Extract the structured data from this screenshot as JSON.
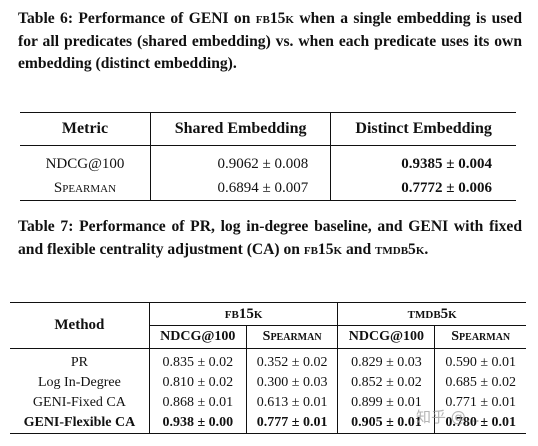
{
  "table6": {
    "caption": {
      "prefix": "Table 6: Performance of GENI on ",
      "dataset": "fb15k",
      "rest": " when a single embedding is used for all predicates (shared embedding) vs. when each predicate uses its own embedding (distinct embedding)."
    },
    "headers": [
      "Metric",
      "Shared Embedding",
      "Distinct Embedding"
    ],
    "rows": [
      {
        "metric": "NDCG@100",
        "shared": "0.9062 ± 0.008",
        "distinct": "0.9385 ± 0.004"
      },
      {
        "metric": "Spearman",
        "shared": "0.6894 ± 0.007",
        "distinct": "0.7772 ± 0.006"
      }
    ]
  },
  "table7": {
    "caption": {
      "prefix": "Table 7: Performance of PR, log in-degree baseline, and GENI with fixed and flexible centrality adjustment (CA) on ",
      "dataset1": "fb15k",
      "and": " and ",
      "dataset2": "tmdb5k",
      "end": "."
    },
    "method_header": "Method",
    "groups": [
      "fb15k",
      "tmdb5k"
    ],
    "subheaders": [
      "NDCG@100",
      "Spearman",
      "NDCG@100",
      "Spearman"
    ],
    "rows": [
      {
        "method": "PR",
        "values": [
          "0.835 ± 0.02",
          "0.352 ± 0.02",
          "0.829 ± 0.03",
          "0.590 ± 0.01"
        ]
      },
      {
        "method": "Log In-Degree",
        "values": [
          "0.810 ± 0.02",
          "0.300 ± 0.03",
          "0.852 ± 0.02",
          "0.685 ± 0.02"
        ]
      },
      {
        "method": "GENI-Fixed CA",
        "values": [
          "0.868 ± 0.01",
          "0.613 ± 0.01",
          "0.899 ± 0.01",
          "0.771 ± 0.01"
        ]
      },
      {
        "method": "GENI-Flexible CA",
        "values": [
          "0.938 ± 0.00",
          "0.777 ± 0.01",
          "0.905 ± 0.01",
          "0.780 ± 0.01"
        ]
      }
    ]
  },
  "watermark": "知乎 @..."
}
